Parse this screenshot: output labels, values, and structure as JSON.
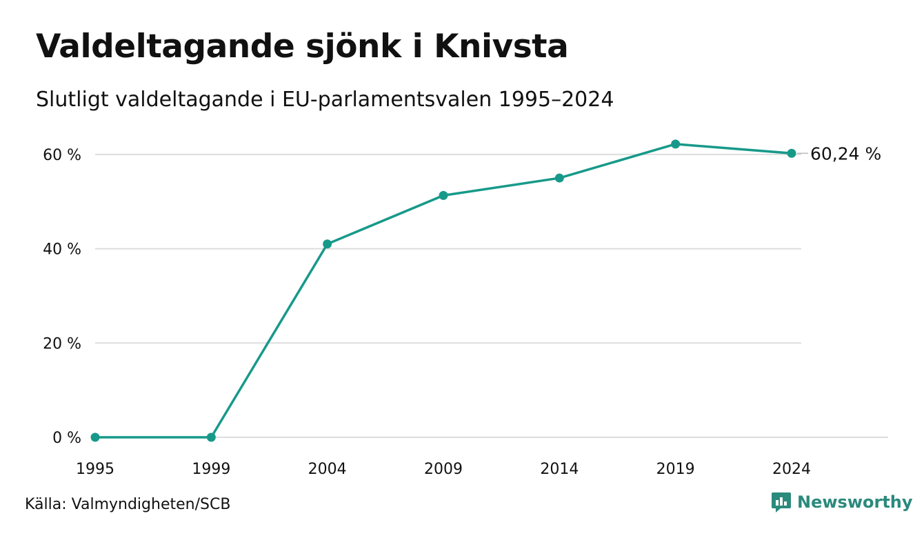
{
  "header": {
    "title": "Valdeltagande sjönk i Knivsta",
    "subtitle": "Slutligt valdeltagande i EU-parlamentsvalen 1995–2024"
  },
  "footer": {
    "source": "Källa: Valmyndigheten/SCB",
    "brand": "Newsworthy"
  },
  "colors": {
    "line": "#17998a",
    "grid": "#dddddd",
    "brand": "#2a8a7c"
  },
  "icons": {
    "brand_logo": "chat-bar-chart-icon"
  },
  "chart_data": {
    "type": "line",
    "title": "Valdeltagande sjönk i Knivsta",
    "subtitle": "Slutligt valdeltagande i EU-parlamentsvalen 1995–2024",
    "categories": [
      "1995",
      "1999",
      "2004",
      "2009",
      "2014",
      "2019",
      "2024"
    ],
    "series": [
      {
        "values": [
          0,
          0,
          41.0,
          51.3,
          55.0,
          62.2,
          60.24
        ]
      }
    ],
    "yticks": [
      0,
      20,
      40,
      60
    ],
    "ytick_labels": [
      "0 %",
      "20 %",
      "40 %",
      "60 %"
    ],
    "ylim": [
      0,
      65
    ],
    "last_value_label": "60,24 %",
    "grid": true,
    "xlabel": "",
    "ylabel": ""
  }
}
